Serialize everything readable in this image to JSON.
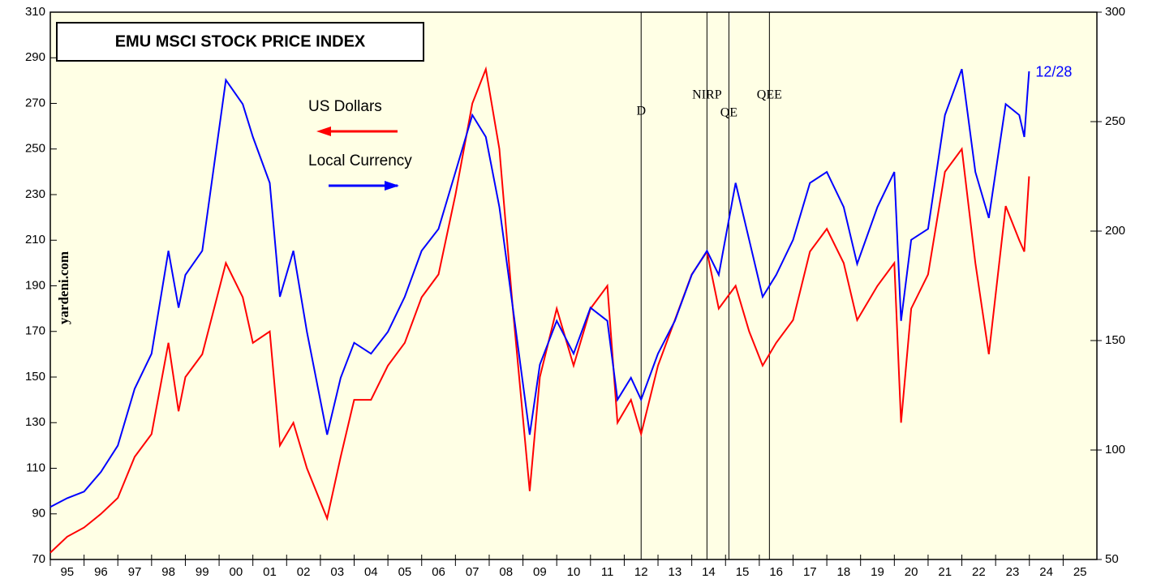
{
  "chart_data": {
    "type": "line",
    "title": "EMU MSCI STOCK PRICE INDEX",
    "watermark": "yardeni.com",
    "end_label": "12/28",
    "annotations": [
      {
        "x": 2012.5,
        "label": "D"
      },
      {
        "x": 2014.45,
        "label": "NIRP"
      },
      {
        "x": 2015.1,
        "label": "QE"
      },
      {
        "x": 2016.3,
        "label": "QEE"
      }
    ],
    "x": [
      1995.0,
      1995.5,
      1996.0,
      1996.5,
      1997.0,
      1997.5,
      1998.0,
      1998.5,
      1998.8,
      1999.0,
      1999.5,
      2000.2,
      2000.7,
      2001.0,
      2001.5,
      2001.8,
      2002.2,
      2002.6,
      2003.2,
      2003.6,
      2004.0,
      2004.5,
      2005.0,
      2005.5,
      2006.0,
      2006.5,
      2007.0,
      2007.5,
      2007.9,
      2008.3,
      2008.7,
      2009.2,
      2009.5,
      2010.0,
      2010.5,
      2011.0,
      2011.5,
      2011.8,
      2012.2,
      2012.5,
      2013.0,
      2013.5,
      2014.0,
      2014.45,
      2014.8,
      2015.3,
      2015.7,
      2016.1,
      2016.5,
      2017.0,
      2017.5,
      2018.0,
      2018.5,
      2018.9,
      2019.5,
      2020.0,
      2020.2,
      2020.5,
      2021.0,
      2021.5,
      2022.0,
      2022.4,
      2022.8,
      2023.3,
      2023.7,
      2023.85,
      2023.99
    ],
    "series": [
      {
        "name": "US Dollars",
        "color": "#ff0000",
        "values": [
          73,
          80,
          84,
          90,
          97,
          115,
          125,
          165,
          135,
          150,
          160,
          200,
          185,
          165,
          170,
          120,
          130,
          110,
          88,
          115,
          140,
          140,
          155,
          165,
          185,
          195,
          230,
          270,
          285,
          250,
          180,
          100,
          150,
          180,
          155,
          180,
          190,
          130,
          140,
          125,
          155,
          175,
          195,
          205,
          180,
          190,
          170,
          155,
          165,
          175,
          205,
          215,
          200,
          175,
          190,
          200,
          130,
          180,
          195,
          240,
          250,
          200,
          160,
          225,
          210,
          205,
          238
        ]
      },
      {
        "name": "Local Currency",
        "color": "#0000ff",
        "axis": "y2",
        "values": [
          74,
          78,
          81,
          90,
          102,
          128,
          144,
          191,
          165,
          180,
          191,
          269,
          258,
          243,
          222,
          170,
          191,
          154,
          107,
          133,
          149,
          144,
          154,
          170,
          191,
          201,
          227,
          253,
          243,
          211,
          165,
          107,
          139,
          159,
          144,
          165,
          159,
          123,
          133,
          123,
          144,
          159,
          180,
          191,
          180,
          222,
          196,
          170,
          180,
          196,
          222,
          227,
          211,
          185,
          211,
          227,
          159,
          196,
          201,
          253,
          274,
          227,
          206,
          258,
          253,
          243,
          273
        ]
      }
    ],
    "xlim": [
      1995,
      2026
    ],
    "xticks": [
      {
        "value": 1995.5,
        "label": "95"
      },
      {
        "value": 1996.5,
        "label": "96"
      },
      {
        "value": 1997.5,
        "label": "97"
      },
      {
        "value": 1998.5,
        "label": "98"
      },
      {
        "value": 1999.5,
        "label": "99"
      },
      {
        "value": 2000.5,
        "label": "00"
      },
      {
        "value": 2001.5,
        "label": "01"
      },
      {
        "value": 2002.5,
        "label": "02"
      },
      {
        "value": 2003.5,
        "label": "03"
      },
      {
        "value": 2004.5,
        "label": "04"
      },
      {
        "value": 2005.5,
        "label": "05"
      },
      {
        "value": 2006.5,
        "label": "06"
      },
      {
        "value": 2007.5,
        "label": "07"
      },
      {
        "value": 2008.5,
        "label": "08"
      },
      {
        "value": 2009.5,
        "label": "09"
      },
      {
        "value": 2010.5,
        "label": "10"
      },
      {
        "value": 2011.5,
        "label": "11"
      },
      {
        "value": 2012.5,
        "label": "12"
      },
      {
        "value": 2013.5,
        "label": "13"
      },
      {
        "value": 2014.5,
        "label": "14"
      },
      {
        "value": 2015.5,
        "label": "15"
      },
      {
        "value": 2016.5,
        "label": "16"
      },
      {
        "value": 2017.5,
        "label": "17"
      },
      {
        "value": 2018.5,
        "label": "18"
      },
      {
        "value": 2019.5,
        "label": "19"
      },
      {
        "value": 2020.5,
        "label": "20"
      },
      {
        "value": 2021.5,
        "label": "21"
      },
      {
        "value": 2022.5,
        "label": "22"
      },
      {
        "value": 2023.5,
        "label": "23"
      },
      {
        "value": 2024.5,
        "label": "24"
      },
      {
        "value": 2025.5,
        "label": "25"
      }
    ],
    "ylim": [
      70,
      310
    ],
    "yticks": [
      70,
      90,
      110,
      130,
      150,
      170,
      190,
      210,
      230,
      250,
      270,
      290,
      310
    ],
    "y2lim": [
      50,
      300
    ],
    "y2ticks": [
      50,
      100,
      150,
      200,
      250,
      300
    ]
  }
}
